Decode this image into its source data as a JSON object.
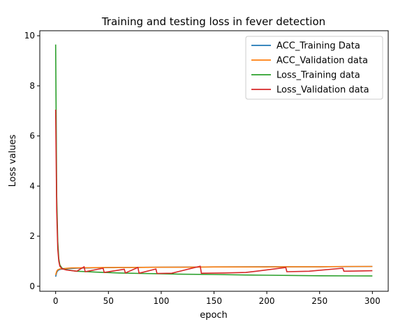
{
  "chart_data": {
    "type": "line",
    "title": "Training and testing loss in fever detection",
    "xlabel": "epoch",
    "ylabel": "Loss values",
    "xlim": [
      -15,
      315
    ],
    "ylim": [
      -0.2,
      10.2
    ],
    "x_ticks": [
      0,
      50,
      100,
      150,
      200,
      250,
      300
    ],
    "y_ticks": [
      0,
      2,
      4,
      6,
      8,
      10
    ],
    "legend_position": "top-right",
    "grid": false,
    "series": [
      {
        "name": "ACC_Training Data",
        "color": "#1f77b4",
        "points": [
          [
            0,
            0.38
          ],
          [
            1,
            0.55
          ],
          [
            2,
            0.62
          ],
          [
            3,
            0.65
          ],
          [
            5,
            0.68
          ],
          [
            10,
            0.7
          ],
          [
            20,
            0.72
          ],
          [
            40,
            0.74
          ],
          [
            60,
            0.75
          ],
          [
            100,
            0.76
          ],
          [
            150,
            0.77
          ],
          [
            200,
            0.78
          ],
          [
            250,
            0.78
          ],
          [
            300,
            0.79
          ]
        ]
      },
      {
        "name": "ACC_Validation data",
        "color": "#ff7f0e",
        "points": [
          [
            0,
            0.45
          ],
          [
            1,
            0.6
          ],
          [
            2,
            0.66
          ],
          [
            4,
            0.69
          ],
          [
            8,
            0.71
          ],
          [
            15,
            0.73
          ],
          [
            30,
            0.74
          ],
          [
            50,
            0.75
          ],
          [
            75,
            0.75
          ],
          [
            100,
            0.76
          ],
          [
            125,
            0.76
          ],
          [
            150,
            0.77
          ],
          [
            175,
            0.77
          ],
          [
            200,
            0.77
          ],
          [
            225,
            0.78
          ],
          [
            250,
            0.78
          ],
          [
            275,
            0.79
          ],
          [
            300,
            0.79
          ]
        ]
      },
      {
        "name": "Loss_Training data",
        "color": "#2ca02c",
        "points": [
          [
            0,
            9.65
          ],
          [
            1,
            3.6
          ],
          [
            2,
            1.8
          ],
          [
            3,
            1.1
          ],
          [
            4,
            0.85
          ],
          [
            6,
            0.72
          ],
          [
            10,
            0.66
          ],
          [
            20,
            0.6
          ],
          [
            40,
            0.56
          ],
          [
            60,
            0.53
          ],
          [
            80,
            0.51
          ],
          [
            100,
            0.5
          ],
          [
            120,
            0.48
          ],
          [
            150,
            0.47
          ],
          [
            180,
            0.45
          ],
          [
            200,
            0.44
          ],
          [
            250,
            0.42
          ],
          [
            300,
            0.41
          ]
        ]
      },
      {
        "name": "Loss_Validation data",
        "color": "#d62728",
        "points": [
          [
            0,
            7.05
          ],
          [
            1,
            3.0
          ],
          [
            2,
            1.5
          ],
          [
            3,
            1.0
          ],
          [
            4,
            0.8
          ],
          [
            6,
            0.7
          ],
          [
            10,
            0.65
          ],
          [
            20,
            0.6
          ],
          [
            27,
            0.78
          ],
          [
            28,
            0.58
          ],
          [
            45,
            0.72
          ],
          [
            46,
            0.55
          ],
          [
            65,
            0.68
          ],
          [
            66,
            0.53
          ],
          [
            78,
            0.75
          ],
          [
            79,
            0.52
          ],
          [
            95,
            0.69
          ],
          [
            96,
            0.51
          ],
          [
            110,
            0.52
          ],
          [
            137,
            0.8
          ],
          [
            138,
            0.52
          ],
          [
            160,
            0.53
          ],
          [
            180,
            0.55
          ],
          [
            190,
            0.6
          ],
          [
            218,
            0.75
          ],
          [
            219,
            0.58
          ],
          [
            240,
            0.6
          ],
          [
            272,
            0.72
          ],
          [
            273,
            0.6
          ],
          [
            300,
            0.62
          ]
        ]
      }
    ]
  }
}
